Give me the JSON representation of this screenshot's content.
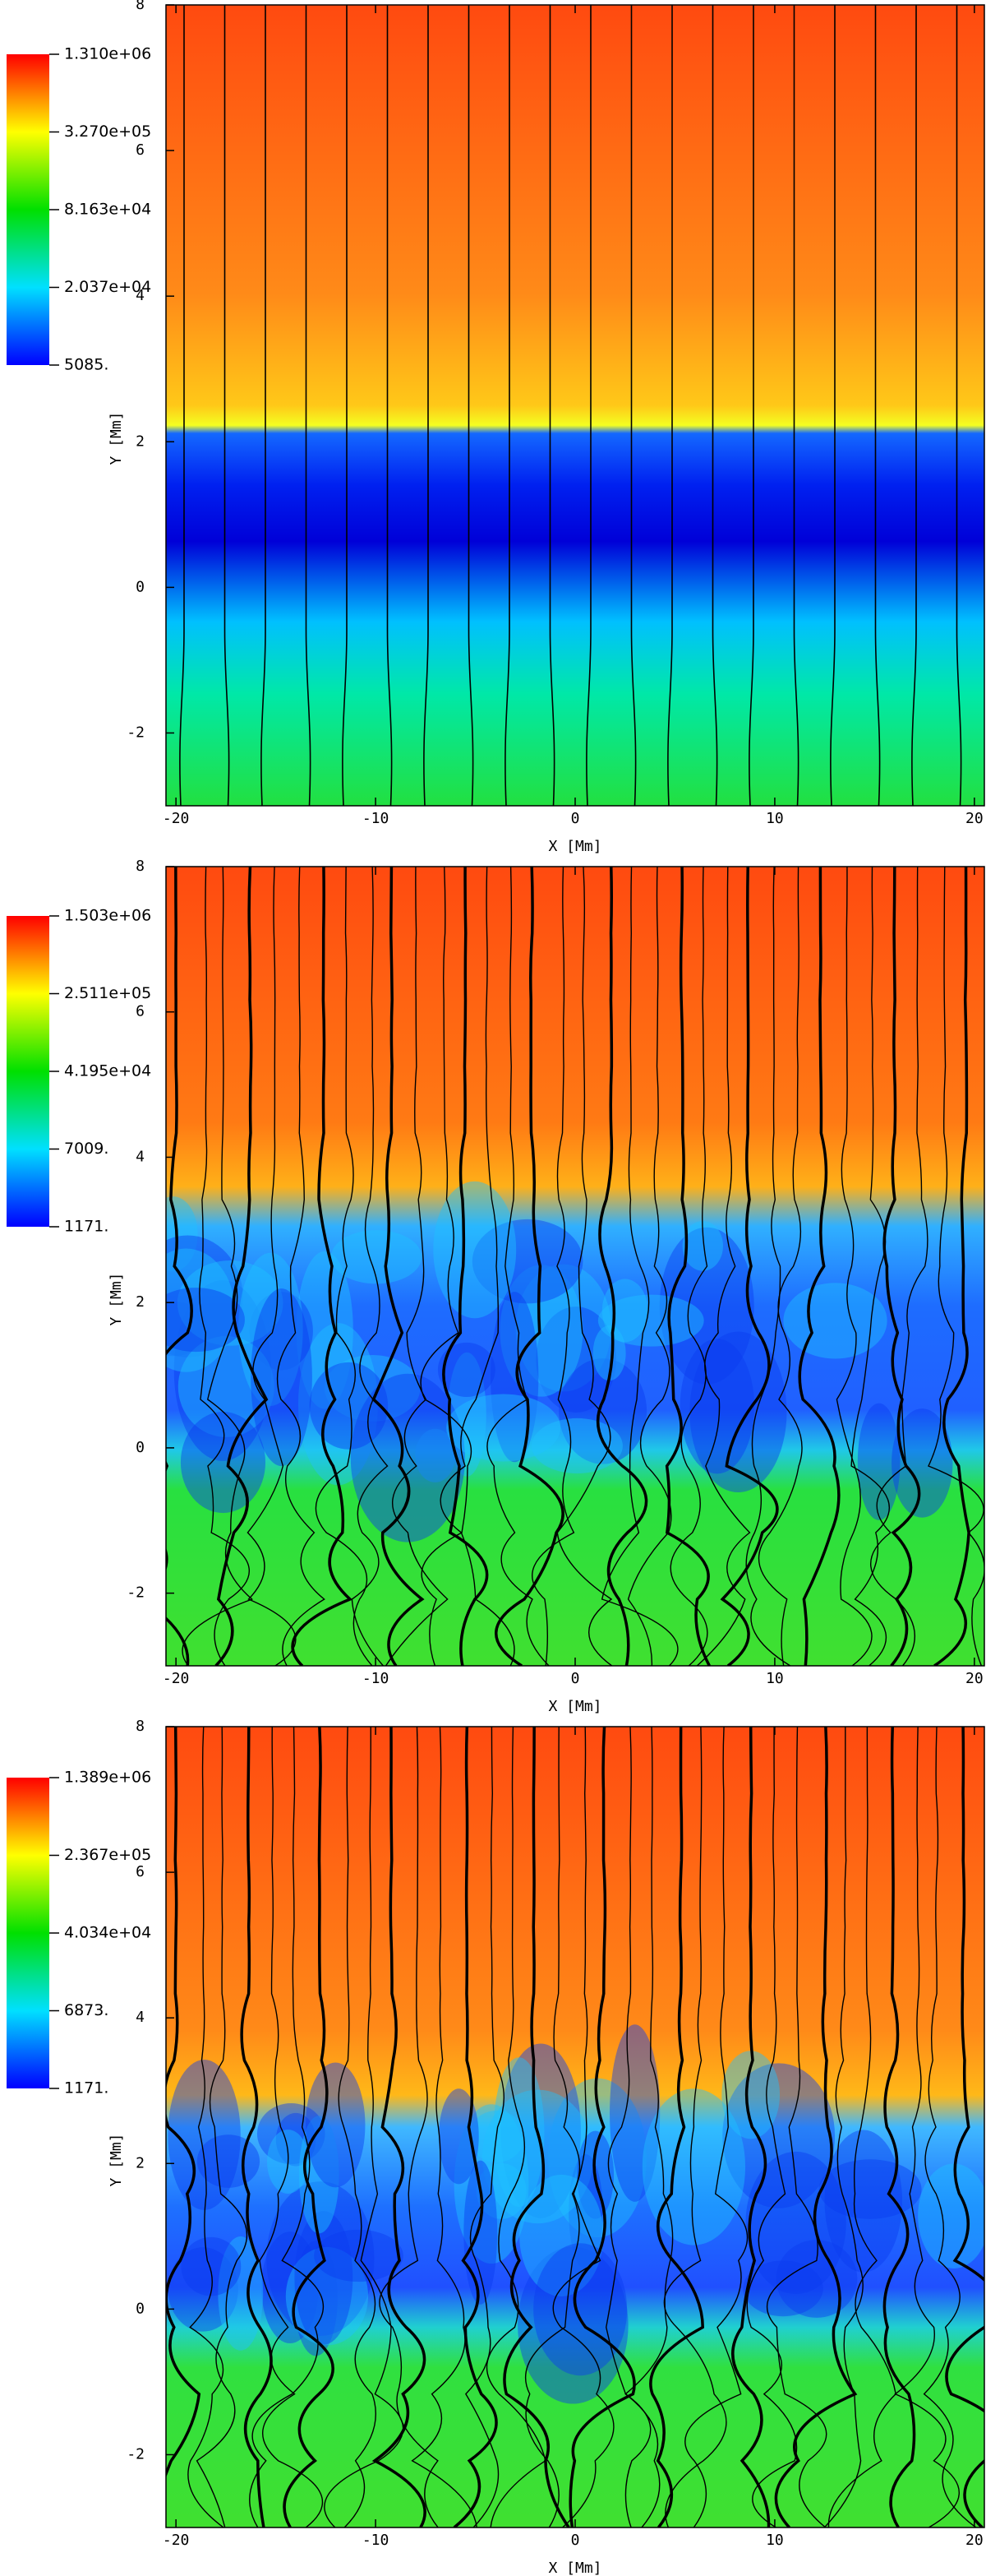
{
  "chart_data": [
    {
      "type": "heatmap",
      "xlabel": "X  [Mm]",
      "ylabel": "Y  [Mm]",
      "xlim": [
        -20.5,
        20.5
      ],
      "ylim": [
        -3,
        8
      ],
      "xticks": [
        -20,
        -10,
        0,
        10,
        20
      ],
      "yticks": [
        -2,
        0,
        2,
        4,
        6,
        8
      ],
      "colormap": [
        "#0000ff",
        "#00e0ff",
        "#00e000",
        "#ffff00",
        "#ff0000"
      ],
      "colorbar": {
        "scale": "log",
        "lim": [
          5085,
          1310000
        ],
        "ticks": [
          {
            "value": 1310000,
            "label": "1.310e+06"
          },
          {
            "value": 327000,
            "label": "3.270e+05"
          },
          {
            "value": 81630,
            "label": "8.163e+04"
          },
          {
            "value": 20370,
            "label": "2.037e+04"
          },
          {
            "value": 5085,
            "label": "5085."
          }
        ]
      }
    },
    {
      "type": "heatmap",
      "xlabel": "X  [Mm]",
      "ylabel": "Y  [Mm]",
      "xlim": [
        -20.5,
        20.5
      ],
      "ylim": [
        -3,
        8
      ],
      "xticks": [
        -20,
        -10,
        0,
        10,
        20
      ],
      "yticks": [
        -2,
        0,
        2,
        4,
        6,
        8
      ],
      "colormap": [
        "#0000ff",
        "#00e0ff",
        "#00e000",
        "#ffff00",
        "#ff0000"
      ],
      "colorbar": {
        "scale": "log",
        "lim": [
          1171,
          1503000
        ],
        "ticks": [
          {
            "value": 1503000,
            "label": "1.503e+06"
          },
          {
            "value": 251100,
            "label": "2.511e+05"
          },
          {
            "value": 41950,
            "label": "4.195e+04"
          },
          {
            "value": 7009,
            "label": "7009."
          },
          {
            "value": 1171,
            "label": "1171."
          }
        ]
      }
    },
    {
      "type": "heatmap",
      "xlabel": "X  [Mm]",
      "ylabel": "Y  [Mm]",
      "xlim": [
        -20.5,
        20.5
      ],
      "ylim": [
        -3,
        8
      ],
      "xticks": [
        -20,
        -10,
        0,
        10,
        20
      ],
      "yticks": [
        -2,
        0,
        2,
        4,
        6,
        8
      ],
      "colormap": [
        "#0000ff",
        "#00e0ff",
        "#00e000",
        "#ffff00",
        "#ff0000"
      ],
      "colorbar": {
        "scale": "log",
        "lim": [
          1171,
          1389000
        ],
        "ticks": [
          {
            "value": 1389000,
            "label": "1.389e+06"
          },
          {
            "value": 236700,
            "label": "2.367e+05"
          },
          {
            "value": 40340,
            "label": "4.034e+04"
          },
          {
            "value": 6873,
            "label": "6873."
          },
          {
            "value": 1171,
            "label": "1171."
          }
        ]
      }
    }
  ]
}
